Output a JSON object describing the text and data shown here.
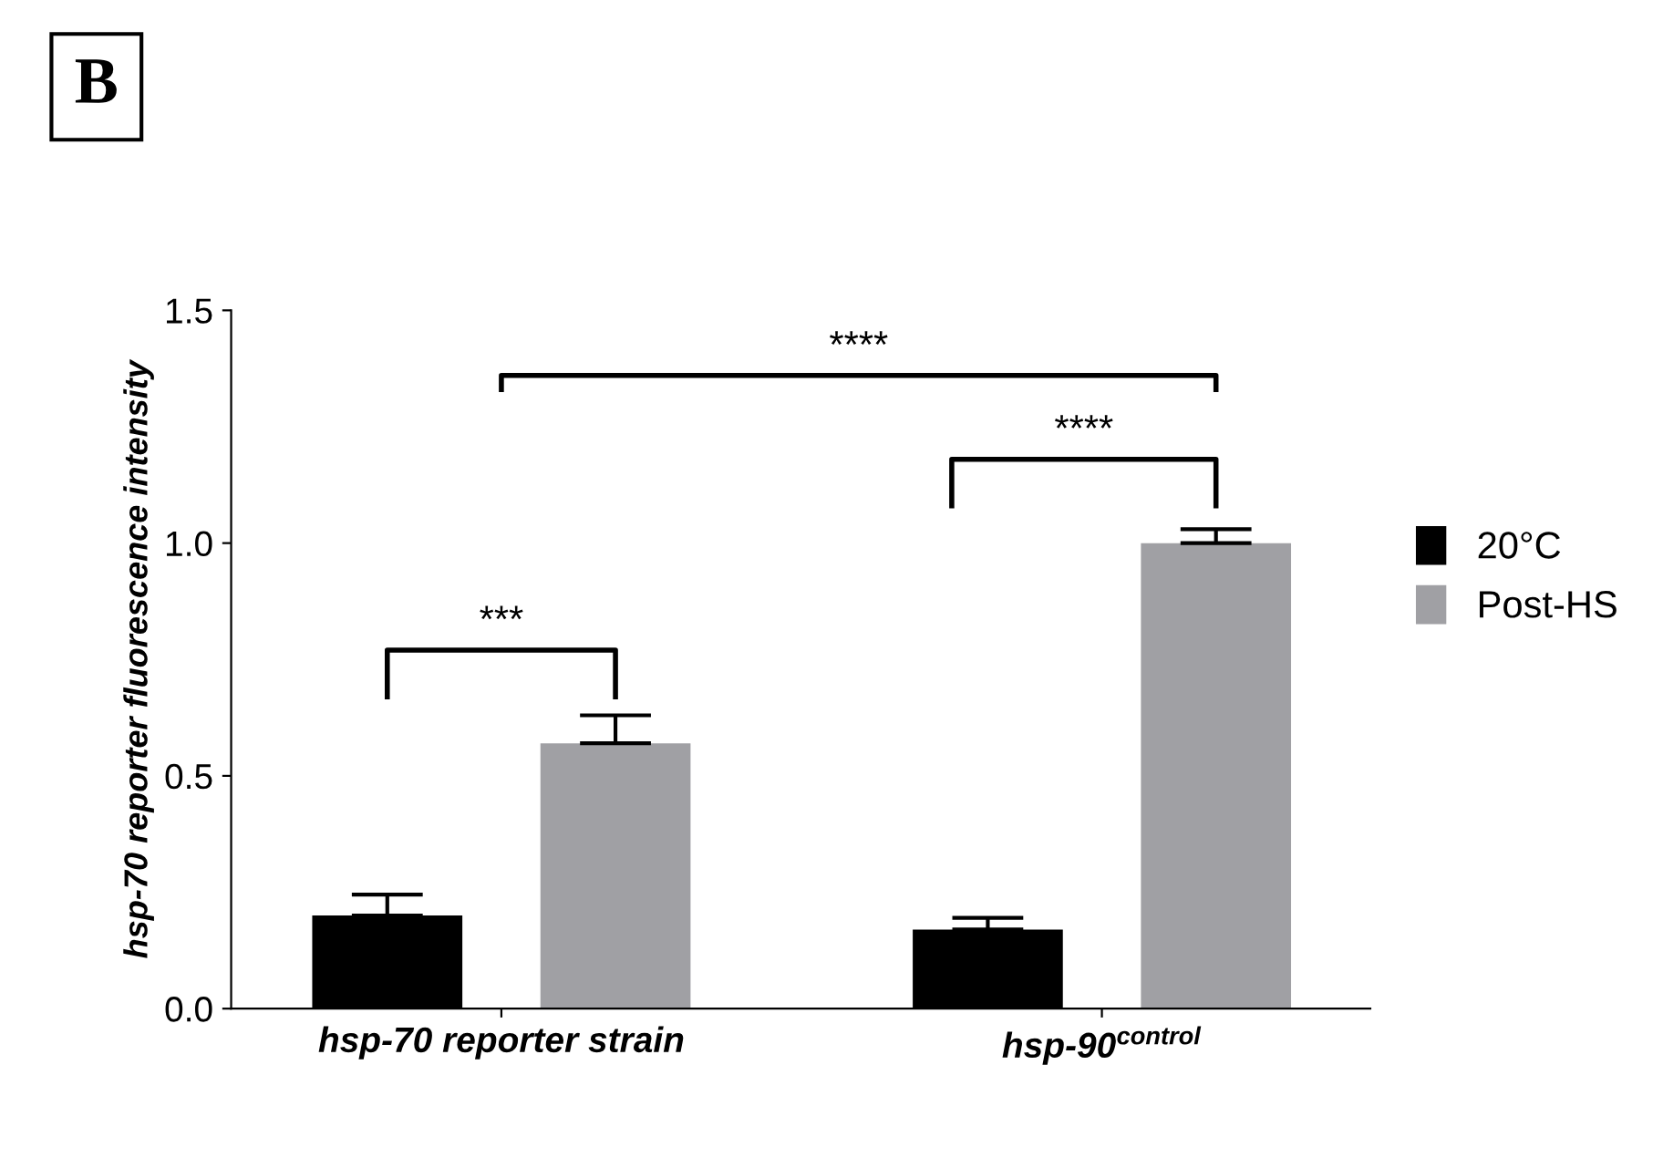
{
  "chart_data": {
    "type": "bar",
    "ylabel": "hsp-70 reporter fluorescence intensity",
    "categories": [
      "hsp-70 reporter strain",
      "hsp-90$^{control}$"
    ],
    "series": [
      {
        "name": "20°C",
        "color": "#000000",
        "values": [
          0.2,
          0.17
        ],
        "errors": [
          0.045,
          0.025
        ]
      },
      {
        "name": "Post-HS",
        "color": "#a0a0a4",
        "values": [
          0.57,
          1.0
        ],
        "errors": [
          0.06,
          0.03
        ]
      }
    ],
    "ylim": [
      0,
      1.5
    ],
    "yticks": [
      {
        "value": 0,
        "label": "0.0"
      },
      0.5,
      {
        "value": 1,
        "label": "1.0"
      },
      1.5
    ],
    "grid": false,
    "legend": "right",
    "annotations": [
      "B",
      "***",
      "****",
      "****"
    ]
  }
}
